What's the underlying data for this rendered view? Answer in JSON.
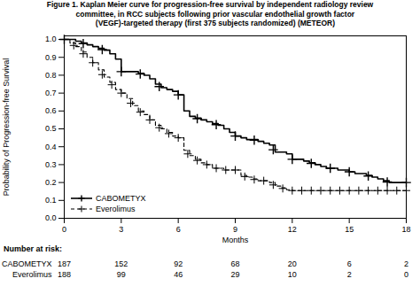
{
  "chart_data": {
    "type": "step",
    "title": "Figure 1. Kaplan Meier curve for progression-free survival by independent radiology review\n     committee, in RCC subjects following prior vascular endothelial growth factor\n     (VEGF)-targeted therapy (first 375 subjects randomized) (METEOR)",
    "xlabel": "Months",
    "ylabel": "Probability of Progression-free Survival",
    "xlim": [
      0,
      18
    ],
    "ylim": [
      0.0,
      1.02
    ],
    "xticks": [
      0,
      3,
      6,
      9,
      12,
      15,
      18
    ],
    "yticks": [
      {
        "value": 0.0,
        "label": "0.0"
      },
      0.1,
      0.2,
      0.3,
      0.4,
      0.5,
      0.6,
      0.7,
      0.8,
      0.9,
      {
        "value": 1.0,
        "label": "1.0"
      }
    ],
    "grid": false,
    "legend": "lower left",
    "series": [
      {
        "name": "CABOMETYX",
        "color": "#000000",
        "line_style": "solid",
        "marker": "plus",
        "x": [
          0,
          0.3,
          0.6,
          0.9,
          1.2,
          1.5,
          1.8,
          2.1,
          2.4,
          2.7,
          3.0,
          3.3,
          3.6,
          3.9,
          4.2,
          4.5,
          4.8,
          5.1,
          5.4,
          5.7,
          6.0,
          6.3,
          6.6,
          6.9,
          7.2,
          7.5,
          7.8,
          8.1,
          8.4,
          8.7,
          9.0,
          9.3,
          9.6,
          9.9,
          10.2,
          10.5,
          10.8,
          11.1,
          11.4,
          11.7,
          12.0,
          12.3,
          12.6,
          12.9,
          13.2,
          13.5,
          13.8,
          14.1,
          14.4,
          14.7,
          15.0,
          15.3,
          15.6,
          15.9,
          16.2,
          16.5,
          16.8,
          17.1,
          17.4,
          17.7,
          18.0
        ],
        "values": [
          1.0,
          1.0,
          0.99,
          0.98,
          0.97,
          0.96,
          0.95,
          0.94,
          0.92,
          0.89,
          0.82,
          0.82,
          0.82,
          0.81,
          0.8,
          0.78,
          0.75,
          0.73,
          0.72,
          0.71,
          0.69,
          0.6,
          0.57,
          0.56,
          0.55,
          0.54,
          0.53,
          0.52,
          0.5,
          0.48,
          0.46,
          0.45,
          0.44,
          0.44,
          0.43,
          0.42,
          0.41,
          0.37,
          0.37,
          0.36,
          0.33,
          0.33,
          0.32,
          0.31,
          0.3,
          0.29,
          0.28,
          0.28,
          0.27,
          0.27,
          0.26,
          0.25,
          0.25,
          0.24,
          0.23,
          0.22,
          0.21,
          0.2,
          0.2,
          0.2,
          0.2
        ],
        "marker_x": [
          0,
          1,
          2,
          3,
          4,
          5,
          6,
          7,
          8,
          9,
          10,
          11,
          12,
          13,
          14,
          15,
          16,
          17,
          18
        ],
        "marker_values": [
          1.0,
          0.97667,
          0.94333,
          0.82,
          0.80667,
          0.73667,
          0.69,
          0.55667,
          0.52333,
          0.46,
          0.43667,
          0.38333,
          0.33,
          0.30667,
          0.28,
          0.26,
          0.23667,
          0.20333,
          0.2
        ]
      },
      {
        "name": "Everolimus",
        "color": "#000000",
        "line_style": "dashed",
        "marker": "plus",
        "x": [
          0,
          0.3,
          0.6,
          0.9,
          1.2,
          1.5,
          1.8,
          2.1,
          2.4,
          2.7,
          3.0,
          3.3,
          3.6,
          3.9,
          4.2,
          4.5,
          4.8,
          5.1,
          5.4,
          5.7,
          6.0,
          6.3,
          6.6,
          6.9,
          7.2,
          7.5,
          7.8,
          8.1,
          8.4,
          8.7,
          9.0,
          9.3,
          9.6,
          9.9,
          10.2,
          10.5,
          10.8,
          11.1,
          11.4,
          11.7,
          12.0,
          12.3,
          12.6,
          12.9,
          13.2,
          13.5,
          13.8,
          14.1,
          14.4,
          14.7,
          15.0,
          15.3,
          15.6,
          15.9,
          16.2,
          16.5,
          16.8,
          17.1,
          17.4,
          17.7,
          18.0
        ],
        "values": [
          1.0,
          0.98,
          0.96,
          0.93,
          0.9,
          0.87,
          0.83,
          0.79,
          0.76,
          0.72,
          0.7,
          0.67,
          0.63,
          0.6,
          0.58,
          0.55,
          0.52,
          0.5,
          0.48,
          0.46,
          0.45,
          0.38,
          0.35,
          0.33,
          0.31,
          0.3,
          0.28,
          0.28,
          0.27,
          0.27,
          0.27,
          0.24,
          0.23,
          0.22,
          0.21,
          0.21,
          0.2,
          0.18,
          0.17,
          0.16,
          0.155,
          0.155,
          0.155,
          0.155,
          0.155,
          0.155,
          0.155,
          0.155,
          0.155,
          0.155,
          0.155,
          0.155,
          0.155,
          0.155,
          0.155,
          0.155,
          0.155,
          0.155,
          0.155,
          0.155,
          0.155
        ],
        "marker_x": [
          0,
          0.5,
          1,
          1.5,
          2,
          2.5,
          3,
          3.5,
          4,
          4.5,
          5,
          5.5,
          6,
          6.5,
          7,
          7.5,
          8,
          8.5,
          9,
          9.5,
          10,
          10.5,
          11,
          11.5,
          12,
          12.5,
          13,
          13.5,
          14,
          14.5,
          15,
          15.5,
          16,
          16.5,
          17,
          17.5,
          18
        ],
        "marker_values": [
          1.0,
          0.96667,
          0.92,
          0.87,
          0.80333,
          0.74667,
          0.7,
          0.64333,
          0.59333,
          0.55,
          0.50667,
          0.47333,
          0.45,
          0.36,
          0.32333,
          0.3,
          0.28,
          0.27,
          0.27,
          0.23333,
          0.21667,
          0.21,
          0.18667,
          0.16667,
          0.155,
          0.155,
          0.155,
          0.155,
          0.155,
          0.155,
          0.155,
          0.155,
          0.155,
          0.155,
          0.155,
          0.155,
          0.155
        ]
      }
    ],
    "risk_table": {
      "title": "Number at risk:",
      "x": [
        0,
        3,
        6,
        9,
        12,
        15,
        18
      ],
      "rows": [
        {
          "name": "CABOMETYX",
          "values": [
            187,
            152,
            92,
            68,
            20,
            6,
            2
          ]
        },
        {
          "name": "Everolimus",
          "values": [
            188,
            99,
            46,
            29,
            10,
            2,
            0
          ]
        }
      ]
    }
  }
}
